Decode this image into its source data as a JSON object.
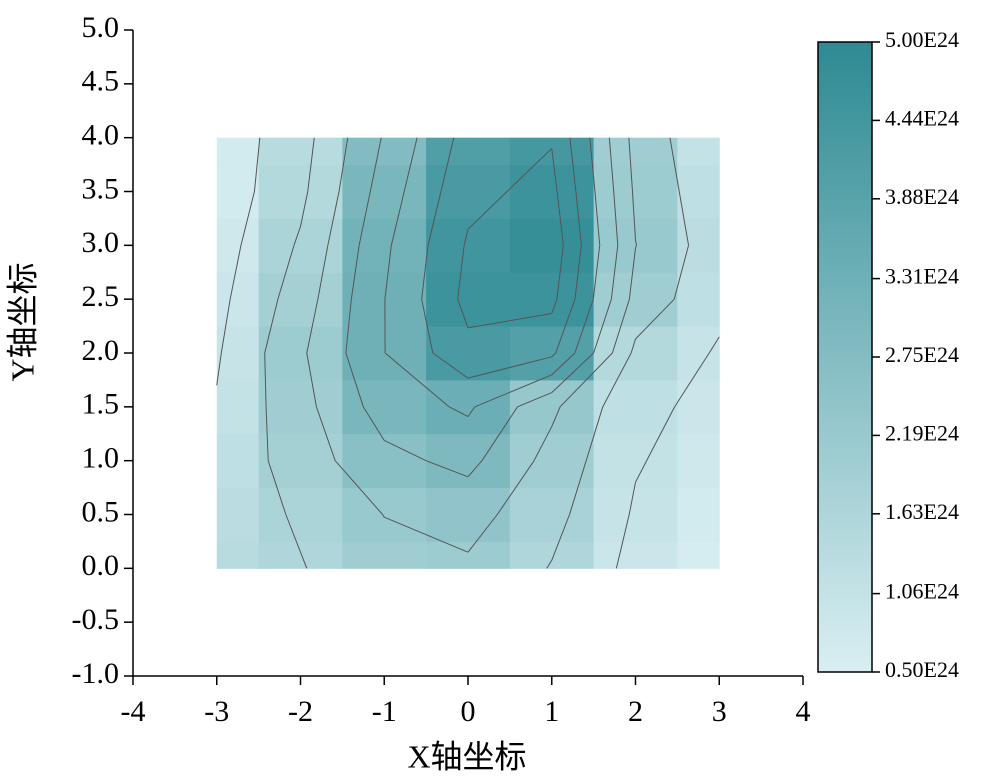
{
  "chart_data": {
    "type": "contour",
    "x_label": "X轴坐标",
    "y_label": "Y轴坐标",
    "xlim": [
      -4,
      4
    ],
    "ylim": [
      -1,
      5
    ],
    "xticks": [
      -4,
      -3,
      -2,
      -1,
      0,
      1,
      2,
      3,
      4
    ],
    "yticks": [
      {
        "value": -1,
        "label": "-1.0"
      },
      {
        "value": -0.5,
        "label": "-0.5"
      },
      {
        "value": 0,
        "label": "0.0"
      },
      {
        "value": 0.5,
        "label": "0.5"
      },
      {
        "value": 1,
        "label": "1.0"
      },
      {
        "value": 1.5,
        "label": "1.5"
      },
      {
        "value": 2,
        "label": "2.0"
      },
      {
        "value": 2.5,
        "label": "2.5"
      },
      {
        "value": 3,
        "label": "3.0"
      },
      {
        "value": 3.5,
        "label": "3.5"
      },
      {
        "value": 4,
        "label": "4.0"
      },
      {
        "value": 4.5,
        "label": "4.5"
      },
      {
        "value": 5,
        "label": "5.0"
      }
    ],
    "x": [
      -3,
      -2,
      -1,
      0,
      1,
      2,
      3
    ],
    "y": [
      0,
      0.5,
      1,
      1.5,
      2,
      2.5,
      3,
      3.5,
      4
    ],
    "z": [
      [
        1.4e+24,
        1.6e+24,
        2e+24,
        2.1e+24,
        1.6e+24,
        9e+23,
        6e+23
      ],
      [
        1.3e+24,
        1.7e+24,
        2.2e+24,
        2.4e+24,
        1.8e+24,
        1e+24,
        7e+23
      ],
      [
        1.2e+24,
        1.9e+24,
        2.6e+24,
        2.9e+24,
        2e+24,
        1.1e+24,
        8e+23
      ],
      [
        1.1e+24,
        2e+24,
        3e+24,
        3.4e+24,
        2.3e+24,
        1.2e+24,
        9e+23
      ],
      [
        1e+24,
        2.1e+24,
        3.3e+24,
        4.3e+24,
        4e+24,
        1.5e+24,
        1e+24
      ],
      [
        9e+23,
        1.9e+24,
        3.3e+24,
        4.6e+24,
        4.6e+24,
        2e+24,
        1.2e+24
      ],
      [
        8e+23,
        1.7e+24,
        3.2e+24,
        4.5e+24,
        4.8e+24,
        2.2e+24,
        1.3e+24
      ],
      [
        7e+23,
        1.5e+24,
        3e+24,
        4.3e+24,
        4.6e+24,
        2.1e+24,
        1.2e+24
      ],
      [
        7e+23,
        1.4e+24,
        2.8e+24,
        4.1e+24,
        4.4e+24,
        2e+24,
        1.1e+24
      ]
    ],
    "colorbar_lim": [
      5e+23,
      5e+24
    ],
    "colorbar_ticks": [
      {
        "value": 5e+23,
        "label": "0.50E24"
      },
      {
        "value": 1.06e+24,
        "label": "1.06E24"
      },
      {
        "value": 1.63e+24,
        "label": "1.63E24"
      },
      {
        "value": 2.19e+24,
        "label": "2.19E24"
      },
      {
        "value": 2.75e+24,
        "label": "2.75E24"
      },
      {
        "value": 3.31e+24,
        "label": "3.31E24"
      },
      {
        "value": 3.88e+24,
        "label": "3.88E24"
      },
      {
        "value": 4.44e+24,
        "label": "4.44E24"
      },
      {
        "value": 5e+24,
        "label": "5.00E24"
      }
    ],
    "colormap": [
      "#d9eff2",
      "#2e8a93"
    ],
    "contour_color": "#555555"
  }
}
